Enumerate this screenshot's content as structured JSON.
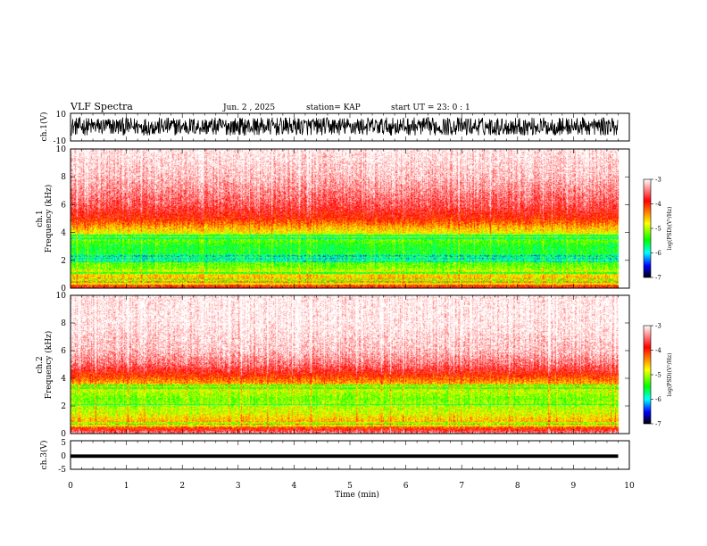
{
  "header": {
    "title": "VLF Spectra",
    "date": "Jun. 2 , 2025",
    "station": "station= KAP",
    "start": "start UT = 23: 0 : 1"
  },
  "colorbar": {
    "ticks": [
      "-3",
      "-4",
      "-5",
      "-6",
      "-7"
    ],
    "label": "log(PSD)(V²/Hz)",
    "colors": [
      "#ffffff",
      "#ff0000",
      "#ffff00",
      "#00ff00",
      "#00ffff",
      "#0000ff",
      "#000000"
    ]
  },
  "chart_data": [
    {
      "type": "line",
      "name": "ch1-waveform",
      "ylabel": "ch.1(V)",
      "yticks": [
        "10",
        "-10"
      ],
      "ylim": [
        -10,
        10
      ],
      "xlim": [
        0,
        10
      ],
      "x_end": 9.8,
      "y_typical_range": [
        -6,
        7
      ],
      "color": "#000000"
    },
    {
      "type": "heatmap",
      "name": "ch1-spectrogram",
      "ylabel_line1": "ch.1",
      "ylabel_line2": "Frequency (kHz)",
      "yticks": [
        "0",
        "2",
        "4",
        "6",
        "8",
        "10"
      ],
      "ylim": [
        0,
        10
      ],
      "xlim": [
        0,
        10
      ],
      "x_end": 9.8,
      "zlim": [
        -7,
        -3
      ],
      "zlabel": "log(PSD)(V²/Hz)",
      "band_profile_khz": [
        0,
        0.5,
        1,
        1.5,
        2,
        2.5,
        3,
        3.5,
        4,
        4.5,
        5,
        6,
        7,
        8,
        10
      ],
      "band_profile_logpsd": [
        -3.9,
        -4.5,
        -4.7,
        -5.2,
        -5.3,
        -5.5,
        -5.5,
        -5.2,
        -4.8,
        -4.4,
        -4.0,
        -3.6,
        -3.4,
        -3.2,
        -3.0
      ],
      "lines_khz": [
        0.3,
        0.6,
        1.1,
        1.9,
        2.1,
        2.3,
        3.6,
        3.8
      ]
    },
    {
      "type": "heatmap",
      "name": "ch2-spectrogram",
      "ylabel_line1": "ch.2",
      "ylabel_line2": "Frequency (kHz)",
      "yticks": [
        "0",
        "2",
        "4",
        "6",
        "8",
        "10"
      ],
      "ylim": [
        0,
        10
      ],
      "xlim": [
        0,
        10
      ],
      "x_end": 9.8,
      "zlim": [
        -7,
        -3
      ],
      "zlabel": "log(PSD)(V²/Hz)",
      "band_profile_khz": [
        0,
        0.5,
        1,
        1.5,
        2,
        2.5,
        3,
        3.5,
        4,
        4.5,
        5,
        6,
        7,
        8,
        10
      ],
      "band_profile_logpsd": [
        -3.3,
        -4.3,
        -4.6,
        -4.9,
        -5.0,
        -5.2,
        -5.0,
        -4.6,
        -4.2,
        -3.8,
        -3.5,
        -3.2,
        -3.1,
        -3.0,
        -3.0
      ],
      "lines_khz": [
        0.6,
        0.8,
        2.1,
        3.3,
        3.5
      ]
    },
    {
      "type": "line",
      "name": "ch3-waveform",
      "ylabel": "ch.3(V)",
      "yticks": [
        "5",
        "0",
        "-5"
      ],
      "ylim": [
        -5,
        5
      ],
      "xlim": [
        0,
        10
      ],
      "x_end": 9.8,
      "y_typical_range": [
        -1,
        0.2
      ],
      "color": "#000000"
    }
  ],
  "xaxis": {
    "label": "Time (min)",
    "ticks": [
      "0",
      "1",
      "2",
      "3",
      "4",
      "5",
      "6",
      "7",
      "8",
      "9",
      "10"
    ],
    "range": [
      0,
      10
    ]
  }
}
